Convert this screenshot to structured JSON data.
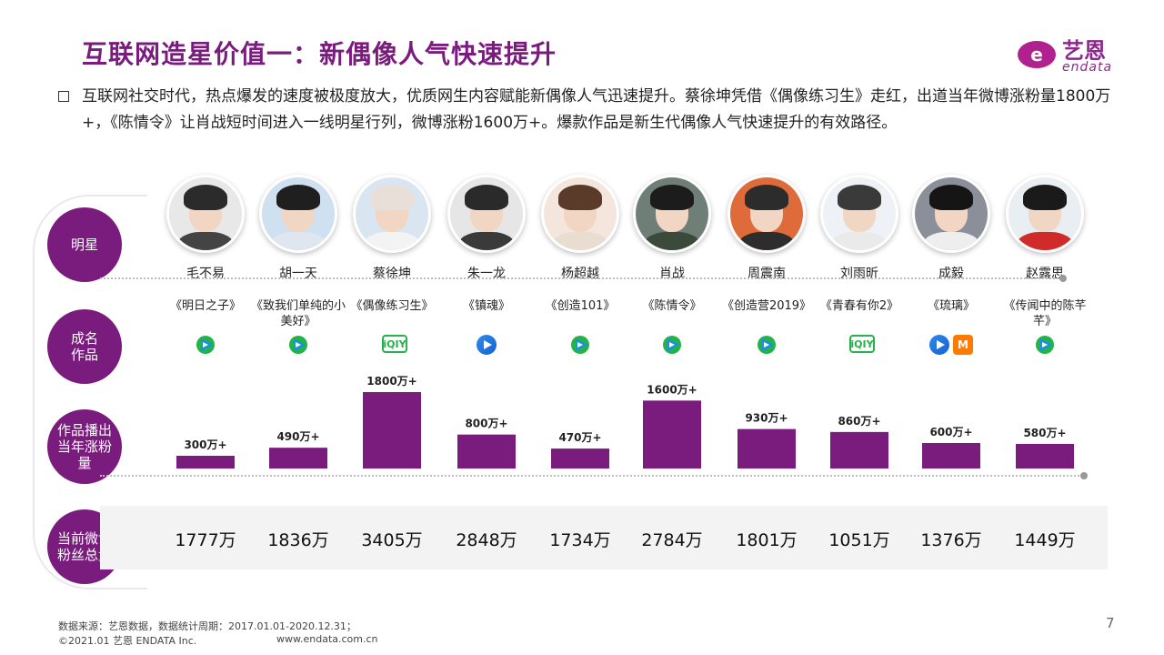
{
  "title": "互联网造星价值一：新偶像人气快速提升",
  "logo": {
    "cn": "艺恩",
    "en": "endata"
  },
  "intro": "互联网社交时代，热点爆发的速度被极度放大，优质网生内容赋能新偶像人气迅速提升。蔡徐坤凭借《偶像练习生》走红，出道当年微博涨粉量1800万+，《陈情令》让肖战短时间进入一线明星行列，微博涨粉1600万+。爆款作品是新生代偶像人气快速提升的有效路径。",
  "row_labels": {
    "star": "明星",
    "work": "成名\n作品",
    "growth": "作品播出\n当年涨粉量",
    "fans": "当前微博\n粉丝总量"
  },
  "stars": [
    {
      "name": "毛不易",
      "work": "《明日之子》",
      "platforms": [
        "tencent"
      ]
    },
    {
      "name": "胡一天",
      "work": "《致我们单纯的小美好》",
      "platforms": [
        "tencent"
      ]
    },
    {
      "name": "蔡徐坤",
      "work": "《偶像练习生》",
      "platforms": [
        "iqiyi"
      ]
    },
    {
      "name": "朱一龙",
      "work": "《镇魂》",
      "platforms": [
        "youku"
      ]
    },
    {
      "name": "杨超越",
      "work": "《创造101》",
      "platforms": [
        "tencent"
      ]
    },
    {
      "name": "肖战",
      "work": "《陈情令》",
      "platforms": [
        "tencent"
      ]
    },
    {
      "name": "周震南",
      "work": "《创造营2019》",
      "platforms": [
        "tencent"
      ]
    },
    {
      "name": "刘雨昕",
      "work": "《青春有你2》",
      "platforms": [
        "iqiyi"
      ]
    },
    {
      "name": "成毅",
      "work": "《琉璃》",
      "platforms": [
        "youku",
        "mgtv"
      ]
    },
    {
      "name": "赵露思",
      "work": "《传闻中的陈芊芊》",
      "platforms": [
        "tencent"
      ]
    }
  ],
  "platform_text": {
    "iqiyi": "iQIY",
    "mgtv": "M"
  },
  "chart_data": {
    "type": "bar",
    "categories": [
      "毛不易",
      "胡一天",
      "蔡徐坤",
      "朱一龙",
      "杨超越",
      "肖战",
      "周震南",
      "刘雨昕",
      "成毅",
      "赵露思"
    ],
    "values": [
      300,
      490,
      1800,
      800,
      470,
      1600,
      930,
      860,
      600,
      580
    ],
    "value_labels": [
      "300万+",
      "490万+",
      "1800万+",
      "800万+",
      "470万+",
      "1600万+",
      "930万+",
      "860万+",
      "600万+",
      "580万+"
    ],
    "unit": "万",
    "bar_color": "#7a1c7e",
    "ylim": [
      0,
      1800
    ]
  },
  "fans_total": [
    "1777万",
    "1836万",
    "3405万",
    "2848万",
    "1734万",
    "2784万",
    "1801万",
    "1051万",
    "1376万",
    "1449万"
  ],
  "colors": {
    "accent": "#7a1c7e",
    "tencent_blue": "#1a8fe3",
    "tencent_green": "#24b34a",
    "iqiyi": "#26b24a",
    "youku": "#2a8cf0",
    "mgtv": "#ff7a00"
  },
  "footer": {
    "source": "数据来源：艺恩数据，数据统计周期：2017.01.01-2020.12.31；",
    "copyright": "©2021.01 艺恩 ENDATA Inc.",
    "site": "www.endata.com.cn",
    "page": "7"
  }
}
